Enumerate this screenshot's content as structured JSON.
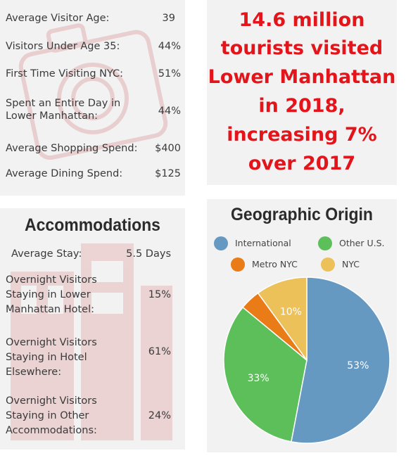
{
  "stats": [
    {
      "label": "Average Visitor Age:",
      "value": "39"
    },
    {
      "label": "Visitors Under Age 35:",
      "value": "44%"
    },
    {
      "label": "First Time Visiting NYC:",
      "value": "51%"
    },
    {
      "label_lines": [
        "Spent an Entire Day in",
        "Lower Manhattan:"
      ],
      "value": "44%"
    },
    {
      "label": "Average Shopping Spend:",
      "value": "$400"
    },
    {
      "label": "Average Dining Spend:",
      "value": "$125"
    }
  ],
  "headline": {
    "lines": [
      "14.6 million",
      "tourists visited",
      "Lower Manhattan",
      "in 2018,",
      "increasing 7%",
      "over 2017"
    ],
    "color": "#e4141b"
  },
  "accommodations": {
    "title": "Accommodations",
    "rows": [
      {
        "label_lines": [
          "Average Stay:"
        ],
        "value": "5.5 Days"
      },
      {
        "label_lines": [
          "Overnight Visitors",
          "Staying in Lower",
          "Manhattan Hotel:"
        ],
        "value": "15%"
      },
      {
        "label_lines": [
          "Overnight Visitors",
          "Staying in Hotel",
          "Elsewhere:"
        ],
        "value": "61%"
      },
      {
        "label_lines": [
          "Overnight Visitors",
          "Staying in Other",
          "Accommodations:"
        ],
        "value": "24%"
      }
    ]
  },
  "chart_data": {
    "type": "pie",
    "title": "Geographic Origin",
    "legend": [
      "International",
      "Other U.S.",
      "Metro NYC",
      "NYC"
    ],
    "slices": [
      {
        "name": "International",
        "value": 53,
        "label": "53%",
        "color": "#6699c2"
      },
      {
        "name": "Other U.S.",
        "value": 33,
        "label": "33%",
        "color": "#5cbf5a"
      },
      {
        "name": "Metro NYC",
        "value": 4,
        "label": "",
        "color": "#e97c17"
      },
      {
        "name": "NYC",
        "value": 10,
        "label": "10%",
        "color": "#ecc15a"
      }
    ]
  }
}
